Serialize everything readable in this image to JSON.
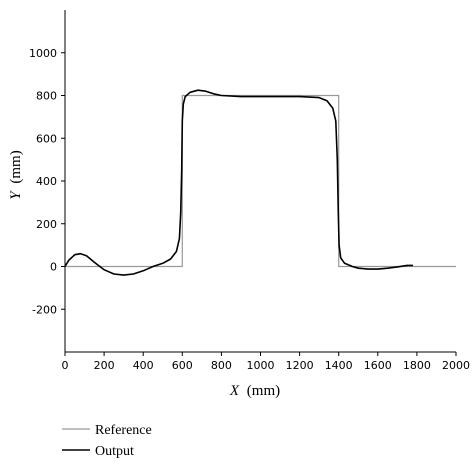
{
  "chart_data": {
    "type": "line",
    "title": "",
    "xlabel_var": "X",
    "xlabel_unit": "(mm)",
    "ylabel_var": "Y",
    "ylabel_unit": "(mm)",
    "xlim": [
      0,
      2000
    ],
    "ylim": [
      -400,
      1200
    ],
    "x_ticks": [
      0,
      200,
      400,
      600,
      800,
      1000,
      1200,
      1400,
      1600,
      1800,
      2000
    ],
    "y_ticks": [
      -200,
      0,
      200,
      400,
      600,
      800,
      1000
    ],
    "grid": false,
    "legend_position": "bottom-left",
    "series": [
      {
        "name": "Reference",
        "color": "#999999",
        "x": [
          0,
          600,
          600,
          1400,
          1400,
          2000
        ],
        "y": [
          0,
          0,
          800,
          800,
          0,
          0
        ]
      },
      {
        "name": "Output",
        "color": "#000000",
        "x": [
          0,
          20,
          50,
          80,
          110,
          150,
          200,
          250,
          300,
          350,
          400,
          450,
          500,
          540,
          570,
          585,
          592,
          597,
          600,
          605,
          615,
          640,
          680,
          720,
          760,
          800,
          900,
          1000,
          1100,
          1200,
          1300,
          1340,
          1370,
          1385,
          1393,
          1398,
          1402,
          1410,
          1430,
          1470,
          1500,
          1550,
          1600,
          1650,
          1700,
          1750,
          1780
        ],
        "y": [
          0,
          30,
          55,
          60,
          50,
          20,
          -15,
          -35,
          -40,
          -35,
          -20,
          0,
          15,
          35,
          70,
          130,
          250,
          450,
          680,
          760,
          795,
          815,
          825,
          820,
          808,
          800,
          795,
          795,
          795,
          795,
          790,
          775,
          740,
          680,
          500,
          250,
          100,
          40,
          15,
          0,
          -8,
          -12,
          -12,
          -8,
          -2,
          5,
          5
        ]
      }
    ]
  }
}
